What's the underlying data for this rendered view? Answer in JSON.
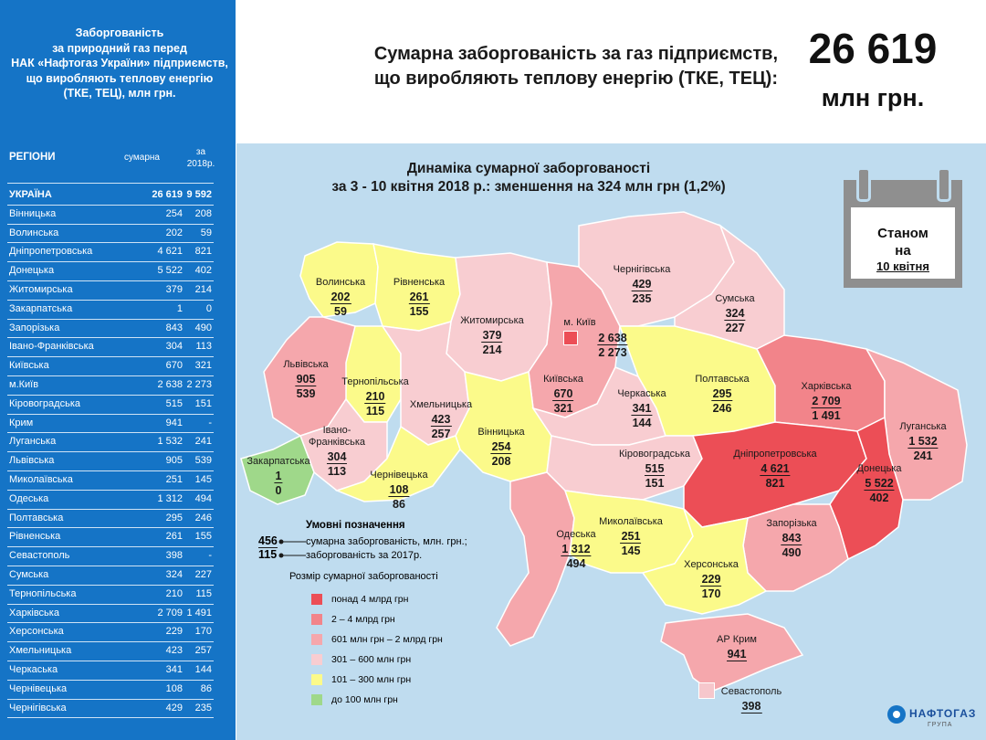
{
  "sidebar": {
    "title_lines": [
      "Заборгованість",
      "за природний газ перед",
      "НАК «Нафтогаз України» підприємств,",
      "що виробляють теплову енергію",
      "(ТКЕ, ТЕЦ), млн грн."
    ],
    "col_region": "РЕГІОНИ",
    "col_total": "сумарна",
    "col_2018_line1": "за",
    "col_2018_line2": "2018р.",
    "rows": [
      {
        "name": "УКРАЇНА",
        "total": "26 619",
        "y2018": "9 592"
      },
      {
        "name": "Вінницька",
        "total": "254",
        "y2018": "208"
      },
      {
        "name": "Волинська",
        "total": "202",
        "y2018": "59"
      },
      {
        "name": "Дніпропетровська",
        "total": "4 621",
        "y2018": "821"
      },
      {
        "name": "Донецька",
        "total": "5 522",
        "y2018": "402"
      },
      {
        "name": "Житомирська",
        "total": "379",
        "y2018": "214"
      },
      {
        "name": "Закарпатська",
        "total": "1",
        "y2018": "0"
      },
      {
        "name": "Запорізька",
        "total": "843",
        "y2018": "490"
      },
      {
        "name": "Івано-Франківська",
        "total": "304",
        "y2018": "113"
      },
      {
        "name": "Київська",
        "total": "670",
        "y2018": "321"
      },
      {
        "name": "м.Київ",
        "total": "2 638",
        "y2018": "2 273"
      },
      {
        "name": "Кіровоградська",
        "total": "515",
        "y2018": "151"
      },
      {
        "name": "Крим",
        "total": "941",
        "y2018": "-"
      },
      {
        "name": "Луганська",
        "total": "1 532",
        "y2018": "241"
      },
      {
        "name": "Львівська",
        "total": "905",
        "y2018": "539"
      },
      {
        "name": "Миколаївська",
        "total": "251",
        "y2018": "145"
      },
      {
        "name": "Одеська",
        "total": "1 312",
        "y2018": "494"
      },
      {
        "name": "Полтавська",
        "total": "295",
        "y2018": "246"
      },
      {
        "name": "Рівненська",
        "total": "261",
        "y2018": "155"
      },
      {
        "name": "Севастополь",
        "total": "398",
        "y2018": "-"
      },
      {
        "name": "Сумська",
        "total": "324",
        "y2018": "227"
      },
      {
        "name": "Тернопільська",
        "total": "210",
        "y2018": "115"
      },
      {
        "name": "Харківська",
        "total": "2 709",
        "y2018": "1 491"
      },
      {
        "name": "Херсонська",
        "total": "229",
        "y2018": "170"
      },
      {
        "name": "Хмельницька",
        "total": "423",
        "y2018": "257"
      },
      {
        "name": "Черкаська",
        "total": "341",
        "y2018": "144"
      },
      {
        "name": "Чернівецька",
        "total": "108",
        "y2018": "86"
      },
      {
        "name": "Чернігівська",
        "total": "429",
        "y2018": "235"
      }
    ]
  },
  "header": {
    "title_line1": "Сумарна заборгованість за газ підприємств,",
    "title_line2": "що виробляють теплову енергію (ТКЕ, ТЕЦ):",
    "total_value": "26 619",
    "total_unit": "млн грн."
  },
  "map": {
    "subtitle_line1": "Динаміка сумарної заборгованості",
    "subtitle_line2": "за 3 - 10 квітня 2018 р.: зменшення на 324 млн грн (1,2%)",
    "calendar": {
      "line1": "Станом",
      "line2": "на",
      "line3": "10 квітня"
    },
    "colors": {
      "over4bn": "#ec4e56",
      "2to4bn": "#f2848a",
      "601to2bn": "#f5a7ac",
      "301to600": "#f8cdd1",
      "101to300": "#fbfa8a",
      "upto100": "#9fd88a",
      "sea": "#bfdcef"
    },
    "regions": {
      "volyn": {
        "name": "Волинська",
        "total": "202",
        "y2018": "59"
      },
      "rivne": {
        "name": "Рівненська",
        "total": "261",
        "y2018": "155"
      },
      "zhytomyr": {
        "name": "Житомирська",
        "total": "379",
        "y2018": "214"
      },
      "chernihiv": {
        "name": "Чернігівська",
        "total": "429",
        "y2018": "235"
      },
      "sumy": {
        "name": "Сумська",
        "total": "324",
        "y2018": "227"
      },
      "kyiv_city": {
        "name": "м. Київ",
        "total": "2 638",
        "y2018": "2 273"
      },
      "lviv": {
        "name": "Львівська",
        "total": "905",
        "y2018": "539"
      },
      "ternopil": {
        "name": "Тернопільська",
        "total": "210",
        "y2018": "115"
      },
      "khmelnytskyi": {
        "name": "Хмельницька",
        "total": "423",
        "y2018": "257"
      },
      "kyiv_oblast": {
        "name": "Київська",
        "total": "670",
        "y2018": "321"
      },
      "cherkasy": {
        "name": "Черкаська",
        "total": "341",
        "y2018": "144"
      },
      "poltava": {
        "name": "Полтавська",
        "total": "295",
        "y2018": "246"
      },
      "kharkiv": {
        "name": "Харківська",
        "total": "2 709",
        "y2018": "1 491"
      },
      "luhansk": {
        "name": "Луганська",
        "total": "1 532",
        "y2018": "241"
      },
      "vinnytsia": {
        "name": "Вінницька",
        "total": "254",
        "y2018": "208"
      },
      "ivano_frankivsk": {
        "name_line1": "Івано-",
        "name_line2": "Франківська",
        "total": "304",
        "y2018": "113"
      },
      "zakarpattia": {
        "name": "Закарпатська",
        "total": "1",
        "y2018": "0"
      },
      "chernivtsi": {
        "name": "Чернівецька",
        "total": "108",
        "y2018": "86"
      },
      "kirovohrad": {
        "name": "Кіровоградська",
        "total": "515",
        "y2018": "151"
      },
      "dnipro": {
        "name": "Дніпропетровська",
        "total": "4 621",
        "y2018": "821"
      },
      "donetsk": {
        "name": "Донецька",
        "total": "5 522",
        "y2018": "402"
      },
      "odesa": {
        "name": "Одеська",
        "total": "1 312",
        "y2018": "494"
      },
      "mykolaiv": {
        "name": "Миколаївська",
        "total": "251",
        "y2018": "145"
      },
      "zaporizhzhia": {
        "name": "Запорізька",
        "total": "843",
        "y2018": "490"
      },
      "kherson": {
        "name": "Херсонська",
        "total": "229",
        "y2018": "170"
      },
      "crimea": {
        "name": "АР Крим",
        "total": "941"
      },
      "sevastopol": {
        "name": "Севастополь",
        "total": "398"
      }
    },
    "legend": {
      "title": "Умовні позначення",
      "example_total": "456",
      "example_2017": "115",
      "text_total": "сумарна заборгованість, млн. грн.;",
      "text_2017": "заборгованість за 2017р.",
      "size_title": "Розмір сумарної заборгованості",
      "items": [
        "понад 4 млрд грн",
        "2 – 4 млрд грн",
        "601 млн грн – 2 млрд грн",
        "301 – 600 млн грн",
        "101 – 300 млн грн",
        "до 100 млн грн"
      ]
    }
  },
  "logo": {
    "text": "НАФТОГАЗ",
    "sub": "ГРУПА"
  }
}
